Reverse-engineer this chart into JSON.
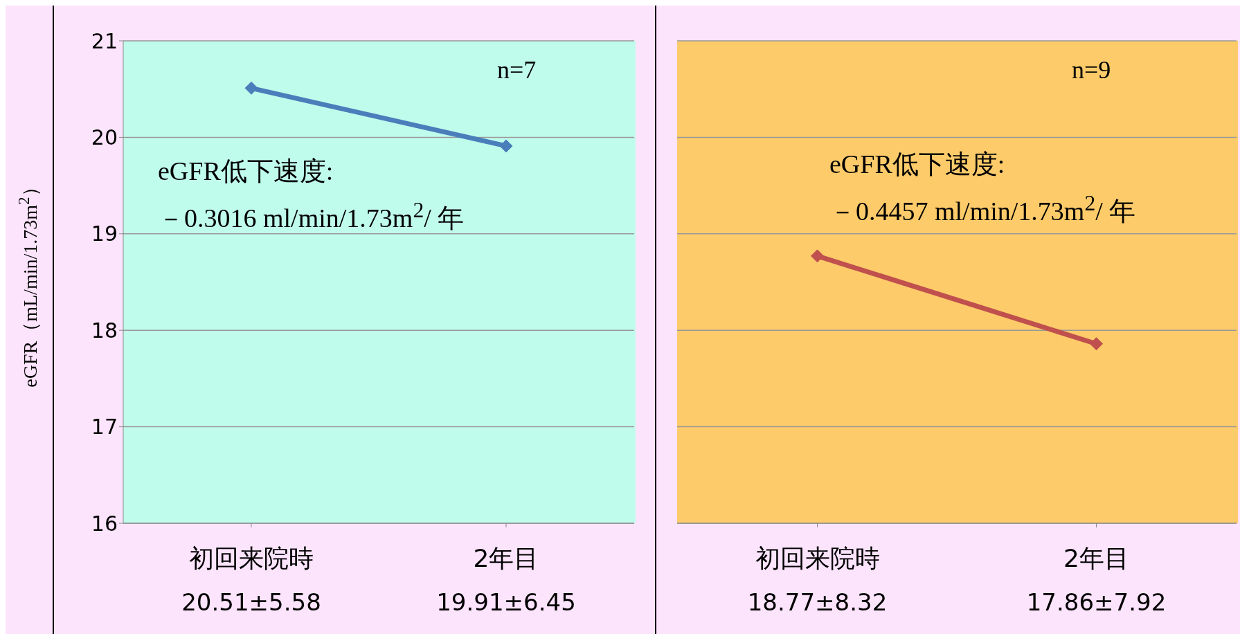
{
  "chart_data": [
    {
      "type": "line",
      "categories": [
        "初回来院時",
        "2年目"
      ],
      "value_labels": [
        "20.51±5.58",
        "19.91±6.45"
      ],
      "series": [
        {
          "color": "#4a7ebb",
          "values": [
            20.51,
            19.91
          ]
        }
      ],
      "ylabel": "eGFR（mL/min/1.73m$^{2}$）",
      "ylim": [
        16,
        21
      ],
      "yticks": [
        16,
        17,
        18,
        19,
        20,
        21
      ],
      "grid": "y",
      "marker": "diamond",
      "legend": false,
      "annotations": [
        "n=7",
        "eGFR低下速度:",
        "－0.3016 ml/min/1.73m$^{2}$/ 年"
      ]
    },
    {
      "type": "line",
      "categories": [
        "初回来院時",
        "2年目"
      ],
      "value_labels": [
        "18.77±8.32",
        "17.86±7.92"
      ],
      "series": [
        {
          "color": "#c0504d",
          "values": [
            18.77,
            17.86
          ]
        }
      ],
      "ylim": [
        16,
        21
      ],
      "yticks": [
        16,
        17,
        18,
        19,
        20,
        21
      ],
      "grid": "y",
      "marker": "diamond",
      "legend": false,
      "tick_labels": "x",
      "annotations": [
        "n=9",
        "eGFR低下速度:",
        "－0.4457 ml/min/1.73m$^{2}$/ 年"
      ]
    }
  ]
}
